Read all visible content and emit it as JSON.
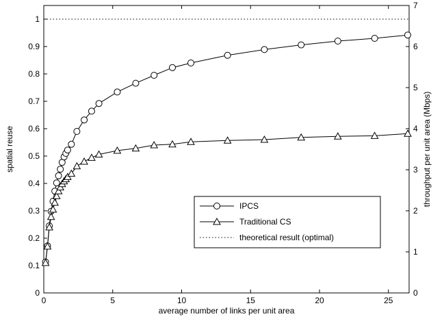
{
  "chart_data": {
    "type": "line",
    "title": "",
    "xlabel": "average number of links per unit area",
    "ylabel": "spatial reuse",
    "y2label": "throughput per unit area (Mbps)",
    "xlim": [
      0,
      26.5
    ],
    "ylim": [
      0,
      1.05
    ],
    "y2lim": [
      0,
      7
    ],
    "xticks": [
      0,
      5,
      10,
      15,
      20,
      25
    ],
    "yticks": [
      0,
      0.1,
      0.2,
      0.3,
      0.4,
      0.5,
      0.6,
      0.7,
      0.8,
      0.9,
      1
    ],
    "y2ticks": [
      0,
      1,
      2,
      3,
      4,
      5,
      6,
      7
    ],
    "grid": false,
    "legend_position": "bottom-right",
    "series": [
      {
        "name": "IPCS",
        "marker": "circle",
        "line": "solid",
        "x": [
          0.13,
          0.27,
          0.4,
          0.53,
          0.67,
          0.8,
          0.93,
          1.07,
          1.2,
          1.33,
          1.47,
          1.6,
          1.73,
          2.0,
          2.4,
          2.93,
          3.47,
          4.0,
          5.33,
          6.67,
          8.0,
          9.33,
          10.67,
          13.33,
          16.0,
          18.67,
          21.33,
          24.0,
          26.4
        ],
        "y": [
          0.113,
          0.172,
          0.245,
          0.298,
          0.335,
          0.372,
          0.402,
          0.428,
          0.452,
          0.477,
          0.497,
          0.51,
          0.522,
          0.543,
          0.59,
          0.632,
          0.664,
          0.692,
          0.734,
          0.766,
          0.795,
          0.823,
          0.84,
          0.868,
          0.889,
          0.906,
          0.92,
          0.93,
          0.942
        ]
      },
      {
        "name": "Traditional CS",
        "marker": "triangle",
        "line": "solid",
        "x": [
          0.13,
          0.27,
          0.4,
          0.53,
          0.67,
          0.8,
          0.93,
          1.07,
          1.2,
          1.33,
          1.47,
          1.6,
          1.73,
          2.0,
          2.4,
          2.93,
          3.47,
          4.0,
          5.33,
          6.67,
          8.0,
          9.33,
          10.67,
          13.33,
          16.0,
          18.67,
          21.33,
          24.0,
          26.4
        ],
        "y": [
          0.11,
          0.17,
          0.24,
          0.278,
          0.305,
          0.33,
          0.354,
          0.372,
          0.386,
          0.398,
          0.408,
          0.416,
          0.424,
          0.436,
          0.463,
          0.48,
          0.494,
          0.506,
          0.52,
          0.528,
          0.54,
          0.543,
          0.552,
          0.557,
          0.56,
          0.568,
          0.572,
          0.574,
          0.582
        ]
      },
      {
        "name": "theoretical result (optimal)",
        "marker": "none",
        "line": "dotted",
        "x": [
          0,
          26.5
        ],
        "y": [
          1,
          1
        ]
      }
    ]
  }
}
